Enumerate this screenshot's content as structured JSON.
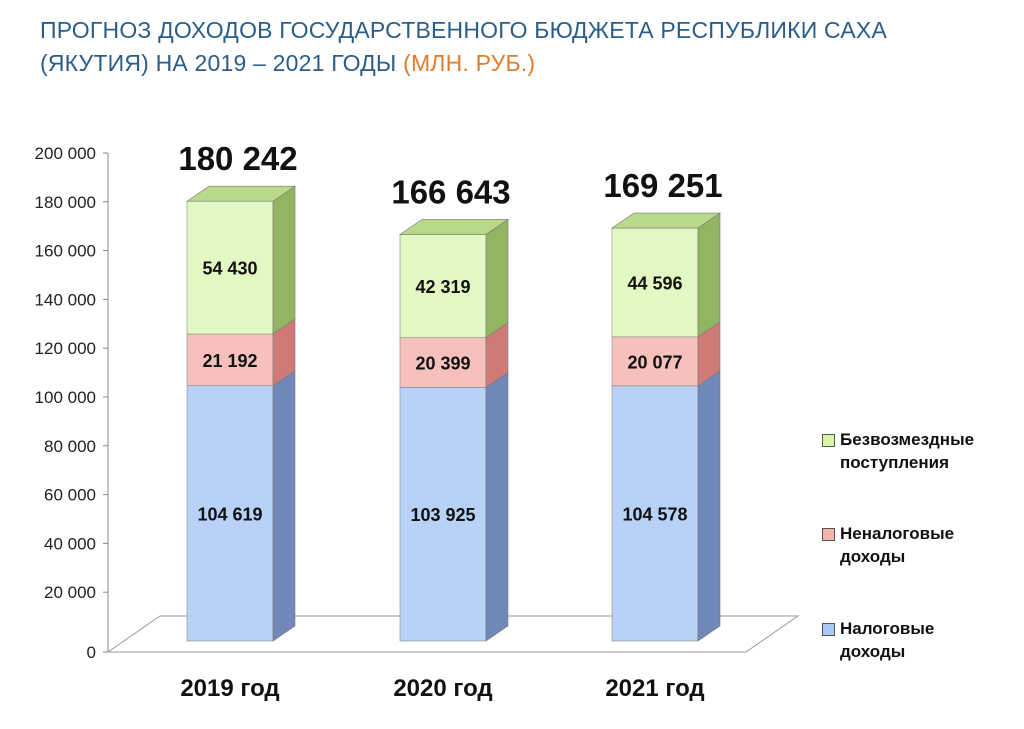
{
  "title": {
    "main": "ПРОГНОЗ ДОХОДОВ ГОСУДАРСТВЕННОГО БЮДЖЕТА РЕСПУБЛИКИ САХА (ЯКУТИЯ) НА 2019 – 2021 ГОДЫ",
    "unit": "(МЛН. РУБ.)"
  },
  "chart_data": {
    "type": "bar",
    "stacked": true,
    "categories": [
      "2019 год",
      "2020 год",
      "2021 год"
    ],
    "totals": [
      "180 242",
      "166 643",
      "169 251"
    ],
    "series": [
      {
        "name": "Налоговые доходы",
        "values": [
          104619,
          103925,
          104578
        ],
        "labels": [
          "104 619",
          "103 925",
          "104 578"
        ],
        "color": "#b7d1f7"
      },
      {
        "name": "Неналоговые доходы",
        "values": [
          21192,
          20399,
          20077
        ],
        "labels": [
          "21 192",
          "20 399",
          "20 077"
        ],
        "color": "#f6c1bd"
      },
      {
        "name": "Безвозмездные поступления",
        "values": [
          54430,
          42319,
          44596
        ],
        "labels": [
          "54 430",
          "42 319",
          "44 596"
        ],
        "color": "#e3f7c3"
      }
    ],
    "ylim": [
      0,
      200000
    ],
    "yticks": [
      0,
      20000,
      40000,
      60000,
      80000,
      100000,
      120000,
      140000,
      160000,
      180000,
      200000
    ],
    "ytick_labels": [
      "0",
      "20 000",
      "40 000",
      "60 000",
      "80 000",
      "100 000",
      "120 000",
      "140 000",
      "160 000",
      "180 000",
      "200 000"
    ],
    "legend_position": "right",
    "grid": false
  },
  "legend": [
    {
      "line1": "Безвозмездные",
      "line2": "поступления",
      "color": "#d9f5a8"
    },
    {
      "line1": "Неналоговые",
      "line2": "доходы",
      "color": "#f6b3ae"
    },
    {
      "line1": "Налоговые",
      "line2": "доходы",
      "color": "#a9c8f5"
    }
  ]
}
